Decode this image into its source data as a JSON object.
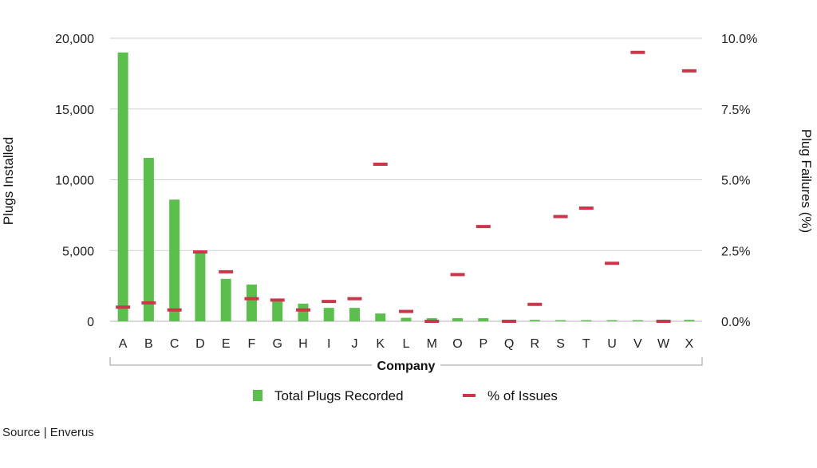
{
  "chart_data": {
    "type": "bar",
    "categories": [
      "A",
      "B",
      "C",
      "D",
      "E",
      "F",
      "G",
      "H",
      "I",
      "J",
      "K",
      "L",
      "M",
      "O",
      "P",
      "Q",
      "R",
      "S",
      "T",
      "U",
      "V",
      "W",
      "X"
    ],
    "series": [
      {
        "name": "Total Plugs Recorded",
        "type": "bar",
        "axis": "left",
        "color": "#5cbf4d",
        "values": [
          19000,
          11550,
          8600,
          4900,
          3000,
          2600,
          1400,
          1250,
          950,
          950,
          550,
          250,
          220,
          220,
          220,
          30,
          100,
          80,
          80,
          80,
          80,
          30,
          100
        ]
      },
      {
        "name": "% of Issues",
        "type": "marker",
        "axis": "right",
        "color": "#c8374a",
        "values": [
          0.5,
          0.65,
          0.4,
          2.45,
          1.75,
          0.8,
          0.75,
          0.4,
          0.7,
          0.8,
          5.55,
          0.35,
          0.0,
          1.65,
          3.35,
          0.0,
          0.6,
          3.7,
          4.0,
          2.05,
          9.5,
          0.0,
          8.85
        ]
      }
    ],
    "xlabel": "Company",
    "ylabel": "Plugs Installed",
    "y2label": "Plug Failures (%)",
    "ylim": [
      0,
      20000
    ],
    "y2lim": [
      0,
      10
    ],
    "yticks": [
      "0",
      "5,000",
      "10,000",
      "15,000",
      "20,000"
    ],
    "y2ticks": [
      "0.0%",
      "2.5%",
      "5.0%",
      "7.5%",
      "10.0%"
    ],
    "grid": true,
    "legend": "bottom"
  },
  "source": "Source | Enverus"
}
